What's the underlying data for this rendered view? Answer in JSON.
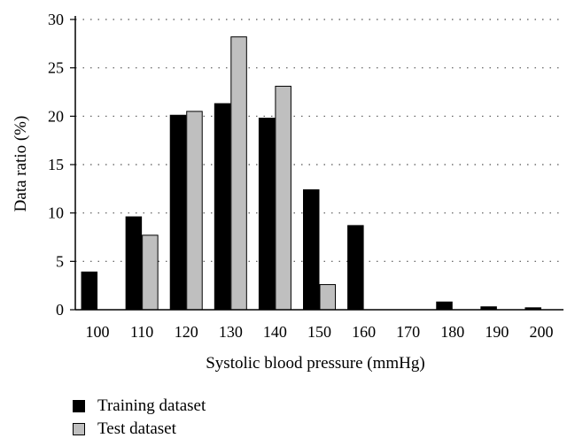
{
  "chart_data": {
    "type": "bar",
    "title": "",
    "xlabel": "Systolic blood pressure (mmHg)",
    "ylabel": "Data ratio (%)",
    "ylim": [
      0,
      30
    ],
    "yticks": [
      "0",
      "5",
      "10",
      "15",
      "20",
      "25",
      "30"
    ],
    "categories": [
      "100",
      "110",
      "120",
      "130",
      "140",
      "150",
      "160",
      "170",
      "180",
      "190",
      "200"
    ],
    "grid": "horizontal dotted",
    "legend_position": "bottom-left",
    "series": [
      {
        "name": "Training dataset",
        "color": "#000000",
        "values": [
          3.9,
          9.6,
          20.1,
          21.3,
          19.8,
          12.4,
          8.7,
          0.0,
          0.8,
          0.3,
          0.2
        ]
      },
      {
        "name": "Test dataset",
        "color": "#bfbfbf",
        "values": [
          0.0,
          7.7,
          20.5,
          28.2,
          23.1,
          2.6,
          0.0,
          0.0,
          0.0,
          0.0,
          0.0
        ]
      }
    ]
  }
}
